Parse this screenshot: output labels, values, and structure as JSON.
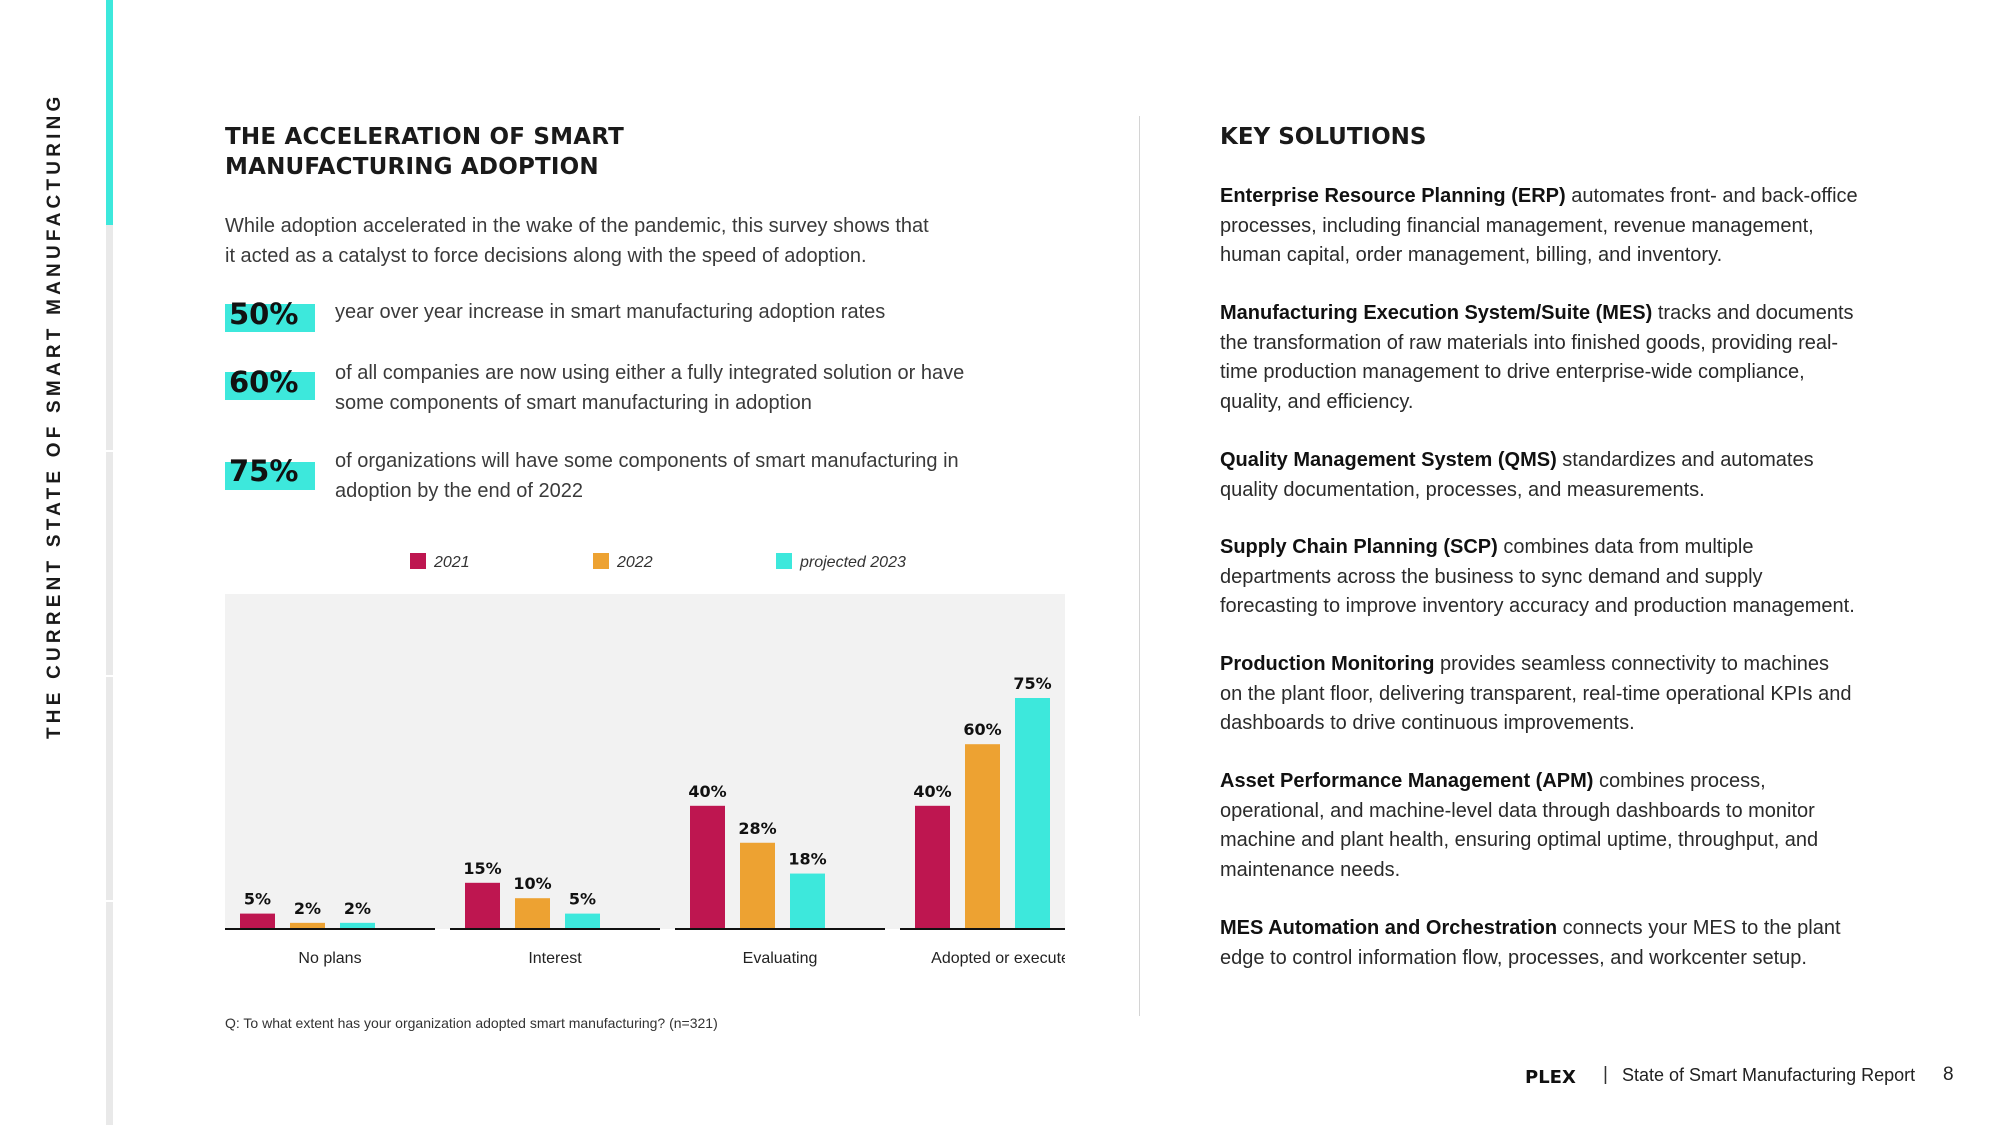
{
  "sidebar": {
    "title": "THE CURRENT STATE OF SMART MANUFACTURING"
  },
  "left": {
    "title_line1": "THE ACCELERATION OF SMART",
    "title_line2": "MANUFACTURING ADOPTION",
    "intro_line1": "While adoption accelerated in the wake of the pandemic, this survey shows that",
    "intro_line2": "it acted as a catalyst to force decisions along with the speed of adoption.",
    "stats": [
      {
        "value": "50%",
        "line1": "year over year increase in smart manufacturing adoption rates",
        "line2": ""
      },
      {
        "value": "60%",
        "line1": "of all companies are now using either a fully integrated solution or have",
        "line2": "some components of smart manufacturing in adoption"
      },
      {
        "value": "75%",
        "line1": "of organizations will have some components of smart manufacturing in",
        "line2": "adoption by the end of 2022"
      }
    ],
    "footnote": "Q: To what extent has your organization adopted smart manufacturing? (n=321)"
  },
  "chart_data": {
    "type": "bar",
    "categories": [
      "No plans",
      "Interest",
      "Evaluating",
      "Adopted or executed"
    ],
    "series": [
      {
        "name": "2021",
        "values": [
          5,
          15,
          40,
          40
        ],
        "labels": [
          "5%",
          "15%",
          "40%",
          "40%"
        ],
        "color": "#be1650"
      },
      {
        "name": "2022",
        "values": [
          2,
          10,
          28,
          60
        ],
        "labels": [
          "2%",
          "10%",
          "28%",
          "60%"
        ],
        "color": "#eda232"
      },
      {
        "name": "projected 2023",
        "values": [
          2,
          5,
          18,
          75
        ],
        "labels": [
          "2%",
          "5%",
          "18%",
          "75%"
        ],
        "color": "#3de8dc"
      }
    ],
    "ylim": [
      0,
      80
    ],
    "legend": "top",
    "grid": false,
    "background": "#f2f2f2"
  },
  "right": {
    "title": "KEY SOLUTIONS",
    "solutions": [
      {
        "name": "Enterprise Resource Planning (ERP)",
        "line1": " automates front- and back-office",
        "line2": "processes, including financial management, revenue management,",
        "line3": "human capital, order management, billing, and inventory.",
        "line4": ""
      },
      {
        "name": "Manufacturing Execution System/Suite (MES)",
        "line1": " tracks and documents",
        "line2": "the transformation of raw materials into finished goods, providing real-",
        "line3": "time production management to drive enterprise-wide compliance,",
        "line4": "quality, and efficiency."
      },
      {
        "name": "Quality Management System (QMS)",
        "line1": " standardizes and automates",
        "line2": "quality documentation, processes, and measurements.",
        "line3": "",
        "line4": ""
      },
      {
        "name": "Supply Chain Planning (SCP)",
        "line1": " combines data from multiple",
        "line2": "departments across the business to sync demand and supply",
        "line3": "forecasting to improve inventory accuracy and production management.",
        "line4": ""
      },
      {
        "name": "Production Monitoring",
        "line1": " provides seamless connectivity to machines",
        "line2": "on the plant floor, delivering transparent, real-time operational KPIs and",
        "line3": "dashboards to drive continuous improvements.",
        "line4": ""
      },
      {
        "name": "Asset Performance Management (APM)",
        "line1": " combines process,",
        "line2": "operational, and machine-level data through dashboards to monitor",
        "line3": "machine and plant health, ensuring optimal uptime, throughput, and",
        "line4": "maintenance needs."
      },
      {
        "name": "MES Automation and Orchestration",
        "line1": " connects your MES to the plant",
        "line2": "edge to control information flow, processes, and workcenter setup.",
        "line3": "",
        "line4": ""
      }
    ]
  },
  "footer": {
    "logo_text": "PLEX",
    "separator": "|",
    "report": "State of Smart Manufacturing Report",
    "page_number": "8"
  },
  "colors": {
    "accent": "#3de8dc",
    "magenta": "#be1650",
    "orange": "#eda232"
  }
}
